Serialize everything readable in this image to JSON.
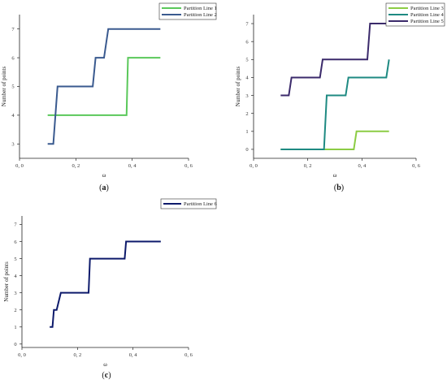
{
  "chart_data": [
    {
      "type": "line",
      "step": true,
      "panel_label": "(a)",
      "xlabel": "ω",
      "ylabel": "Number of points",
      "xlim": [
        0.0,
        0.6
      ],
      "ylim": [
        2.5,
        7.5
      ],
      "xticks": [
        "0, 0",
        "0, 2",
        "0, 4",
        "0, 6"
      ],
      "yticks": [
        "3",
        "4",
        "5",
        "6",
        "7"
      ],
      "legend_position": "top-right",
      "grid": false,
      "series": [
        {
          "name": "Partition Line 1",
          "color": "#5ac85a",
          "x": [
            0.1,
            0.38,
            0.385,
            0.5
          ],
          "y": [
            4,
            4,
            6,
            6
          ]
        },
        {
          "name": "Partition Line 2",
          "color": "#3a5a8f",
          "x": [
            0.1,
            0.12,
            0.135,
            0.26,
            0.27,
            0.3,
            0.315,
            0.5
          ],
          "y": [
            3,
            3,
            5,
            5,
            6,
            6,
            7,
            7
          ]
        }
      ]
    },
    {
      "type": "line",
      "step": true,
      "panel_label": "(b)",
      "xlabel": "ω",
      "ylabel": "Number of points",
      "xlim": [
        0.0,
        0.6
      ],
      "ylim": [
        -0.5,
        7.5
      ],
      "xticks": [
        "0, 0",
        "0, 2",
        "0, 4",
        "0, 6"
      ],
      "yticks": [
        "0",
        "1",
        "2",
        "3",
        "4",
        "5",
        "6",
        "7"
      ],
      "legend_position": "top-right",
      "grid": false,
      "series": [
        {
          "name": "Partition Line 3",
          "color": "#8ccc44",
          "x": [
            0.1,
            0.37,
            0.38,
            0.5
          ],
          "y": [
            0,
            0,
            1,
            1
          ]
        },
        {
          "name": "Partition Line 4",
          "color": "#1e8a82",
          "x": [
            0.1,
            0.26,
            0.27,
            0.34,
            0.35,
            0.49,
            0.5
          ],
          "y": [
            0,
            0,
            3,
            3,
            4,
            4,
            5
          ]
        },
        {
          "name": "Partition Line 5",
          "color": "#3b2a6b",
          "x": [
            0.1,
            0.13,
            0.14,
            0.245,
            0.255,
            0.42,
            0.43,
            0.5
          ],
          "y": [
            3,
            3,
            4,
            4,
            5,
            5,
            7,
            7
          ]
        }
      ]
    },
    {
      "type": "line",
      "step": true,
      "panel_label": "(c)",
      "xlabel": "ω",
      "ylabel": "Number of points",
      "xlim": [
        0.0,
        0.6
      ],
      "ylim": [
        -0.2,
        7.5
      ],
      "xticks": [
        "0, 0",
        "0, 2",
        "0, 4",
        "0, 6"
      ],
      "yticks": [
        "0",
        "1",
        "2",
        "3",
        "4",
        "5",
        "6",
        "7"
      ],
      "legend_position": "top",
      "grid": false,
      "series": [
        {
          "name": "Partition Line 6",
          "color": "#0d1a6b",
          "x": [
            0.1,
            0.11,
            0.115,
            0.125,
            0.14,
            0.145,
            0.24,
            0.245,
            0.37,
            0.375,
            0.5
          ],
          "y": [
            1,
            1,
            2,
            2,
            3,
            3,
            3,
            5,
            5,
            6,
            6
          ]
        }
      ]
    }
  ]
}
